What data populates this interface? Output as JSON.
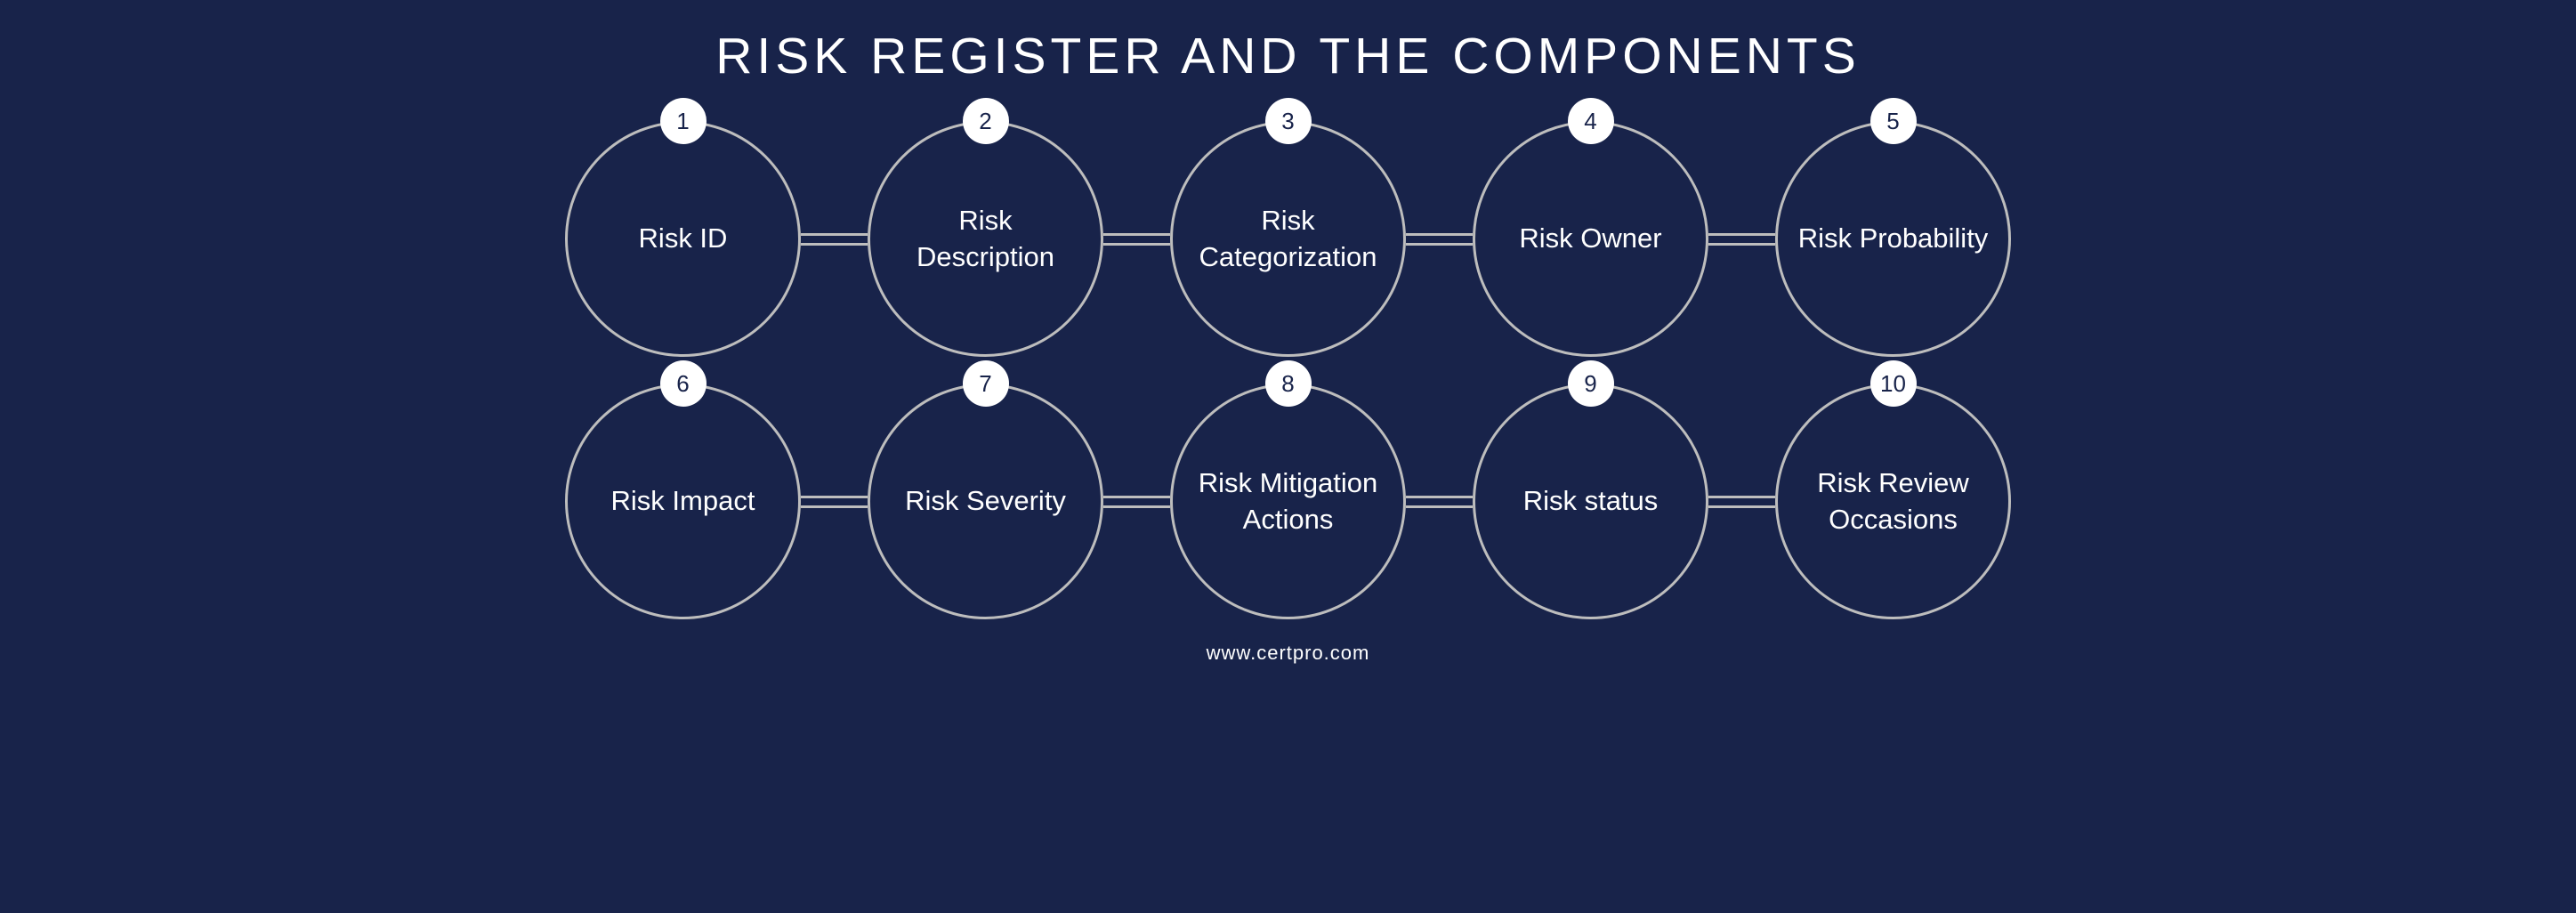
{
  "title": "RISK REGISTER AND THE COMPONENTS",
  "title_fontsize": 57,
  "title_color": "#ffffff",
  "background_color": "#18234a",
  "circle_diameter": 265,
  "circle_border_width": 3.5,
  "circle_border_color": "#bdbdbd",
  "circle_text_color": "#ffffff",
  "circle_fontsize": 31,
  "badge_diameter": 52,
  "badge_bg": "#ffffff",
  "badge_text_color": "#18234a",
  "badge_fontsize": 26,
  "connector_width": 75,
  "connector_line_width": 3,
  "connector_line_color": "#bdbdbd",
  "connector_gap": 8,
  "row_gap": 30,
  "footer": "www.certpro.com",
  "footer_color": "#ffffff",
  "footer_fontsize": 22,
  "rows": [
    [
      {
        "num": "1",
        "label": "Risk ID"
      },
      {
        "num": "2",
        "label": "Risk Description"
      },
      {
        "num": "3",
        "label": "Risk Categorization"
      },
      {
        "num": "4",
        "label": "Risk Owner"
      },
      {
        "num": "5",
        "label": "Risk Probability"
      }
    ],
    [
      {
        "num": "6",
        "label": "Risk Impact"
      },
      {
        "num": "7",
        "label": "Risk Severity"
      },
      {
        "num": "8",
        "label": "Risk Mitigation Actions"
      },
      {
        "num": "9",
        "label": "Risk status"
      },
      {
        "num": "10",
        "label": "Risk Review Occasions"
      }
    ]
  ]
}
